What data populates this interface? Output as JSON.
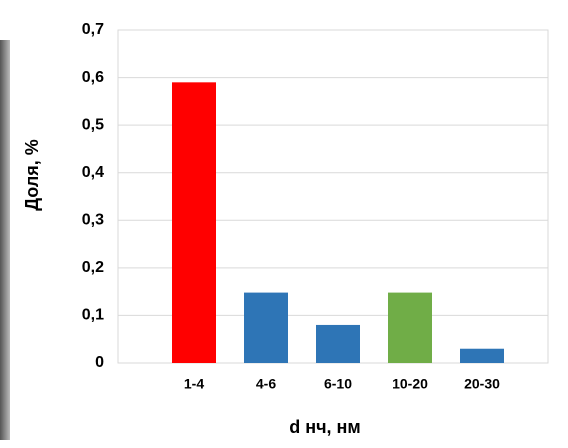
{
  "chart_data": {
    "type": "bar",
    "categories": [
      "1-4",
      "4-6",
      "6-10",
      "10-20",
      "20-30"
    ],
    "values": [
      0.59,
      0.148,
      0.08,
      0.148,
      0.03
    ],
    "colors": [
      "#ff0000",
      "#2e75b6",
      "#2e75b6",
      "#70ad47",
      "#2e75b6"
    ],
    "ylim": [
      0,
      0.7
    ],
    "yticks": [
      0,
      {
        "value": 0.1,
        "label": "0,1"
      },
      {
        "value": 0.2,
        "label": "0,2"
      },
      {
        "value": 0.3,
        "label": "0,3"
      },
      {
        "value": 0.4,
        "label": "0,4"
      },
      {
        "value": 0.5,
        "label": "0,5"
      },
      {
        "value": 0.6,
        "label": "0,6"
      },
      {
        "value": 0.7,
        "label": "0,7"
      }
    ],
    "grid": true,
    "xlabel": "d нч, нм",
    "ylabel": "Доля, %"
  }
}
